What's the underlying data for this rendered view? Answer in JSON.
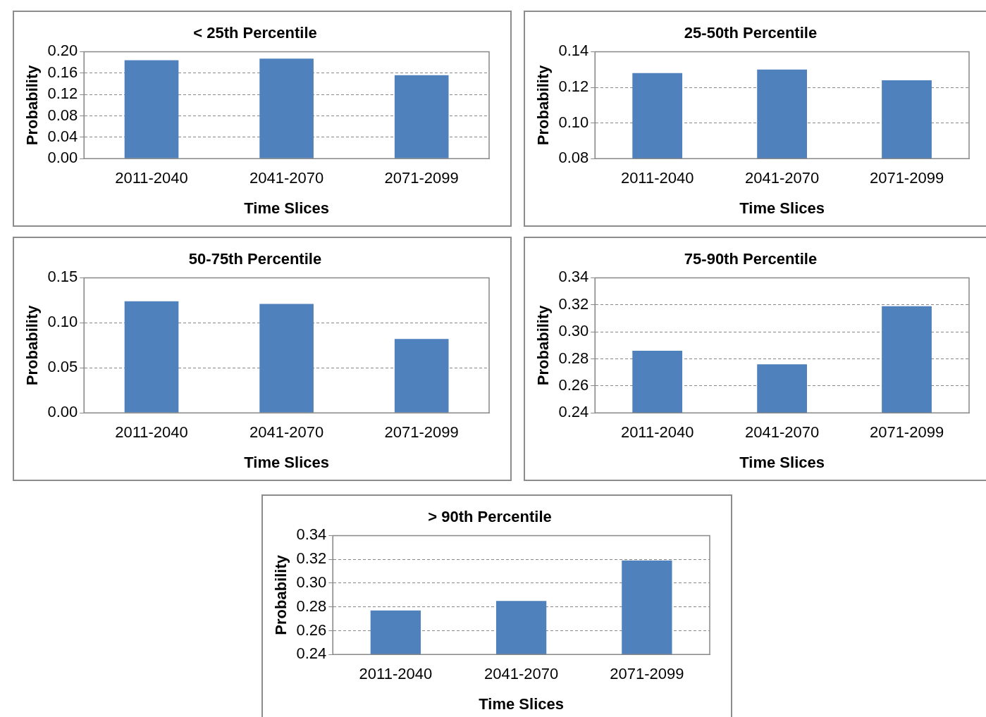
{
  "chart_data": [
    {
      "type": "bar",
      "title": "< 25th Percentile",
      "xlabel": "Time Slices",
      "ylabel": "Probability",
      "categories": [
        "2011-2040",
        "2041-2070",
        "2071-2099"
      ],
      "values": [
        0.184,
        0.187,
        0.156
      ],
      "color": "#4f81bd",
      "ylim": [
        0,
        0.2
      ],
      "yticks": [
        {
          "value": 0,
          "label": "0.00"
        },
        {
          "value": 0.04,
          "label": "0.04"
        },
        {
          "value": 0.08,
          "label": "0.08"
        },
        {
          "value": 0.12,
          "label": "0.12"
        },
        {
          "value": 0.16,
          "label": "0.16"
        },
        {
          "value": 0.2,
          "label": "0.20"
        }
      ],
      "grid": "y",
      "legend": false
    },
    {
      "type": "bar",
      "title": "25-50th Percentile",
      "xlabel": "Time Slices",
      "ylabel": "Probability",
      "categories": [
        "2011-2040",
        "2041-2070",
        "2071-2099"
      ],
      "values": [
        0.128,
        0.13,
        0.124
      ],
      "color": "#4f81bd",
      "ylim": [
        0.08,
        0.14
      ],
      "yticks": [
        {
          "value": 0.08,
          "label": "0.08"
        },
        {
          "value": 0.1,
          "label": "0.10"
        },
        {
          "value": 0.12,
          "label": "0.12"
        },
        {
          "value": 0.14,
          "label": "0.14"
        }
      ],
      "grid": "y",
      "legend": false
    },
    {
      "type": "bar",
      "title": "50-75th Percentile",
      "xlabel": "Time Slices",
      "ylabel": "Probability",
      "categories": [
        "2011-2040",
        "2041-2070",
        "2071-2099"
      ],
      "values": [
        0.124,
        0.121,
        0.082
      ],
      "color": "#4f81bd",
      "ylim": [
        0,
        0.15
      ],
      "yticks": [
        {
          "value": 0,
          "label": "0.00"
        },
        {
          "value": 0.05,
          "label": "0.05"
        },
        {
          "value": 0.1,
          "label": "0.10"
        },
        {
          "value": 0.15,
          "label": "0.15"
        }
      ],
      "grid": "y",
      "legend": false
    },
    {
      "type": "bar",
      "title": "75-90th Percentile",
      "xlabel": "Time Slices",
      "ylabel": "Probability",
      "categories": [
        "2011-2040",
        "2041-2070",
        "2071-2099"
      ],
      "values": [
        0.286,
        0.276,
        0.319
      ],
      "color": "#4f81bd",
      "ylim": [
        0.24,
        0.34
      ],
      "yticks": [
        {
          "value": 0.24,
          "label": "0.24"
        },
        {
          "value": 0.26,
          "label": "0.26"
        },
        {
          "value": 0.28,
          "label": "0.28"
        },
        {
          "value": 0.3,
          "label": "0.30"
        },
        {
          "value": 0.32,
          "label": "0.32"
        },
        {
          "value": 0.34,
          "label": "0.34"
        }
      ],
      "grid": "y",
      "legend": false
    },
    {
      "type": "bar",
      "title": "> 90th Percentile",
      "xlabel": "Time Slices",
      "ylabel": "Probability",
      "categories": [
        "2011-2040",
        "2041-2070",
        "2071-2099"
      ],
      "values": [
        0.277,
        0.285,
        0.319
      ],
      "color": "#4f81bd",
      "ylim": [
        0.24,
        0.34
      ],
      "yticks": [
        {
          "value": 0.24,
          "label": "0.24"
        },
        {
          "value": 0.26,
          "label": "0.26"
        },
        {
          "value": 0.28,
          "label": "0.28"
        },
        {
          "value": 0.3,
          "label": "0.30"
        },
        {
          "value": 0.32,
          "label": "0.32"
        },
        {
          "value": 0.34,
          "label": "0.34"
        }
      ],
      "grid": "y",
      "legend": false
    }
  ]
}
